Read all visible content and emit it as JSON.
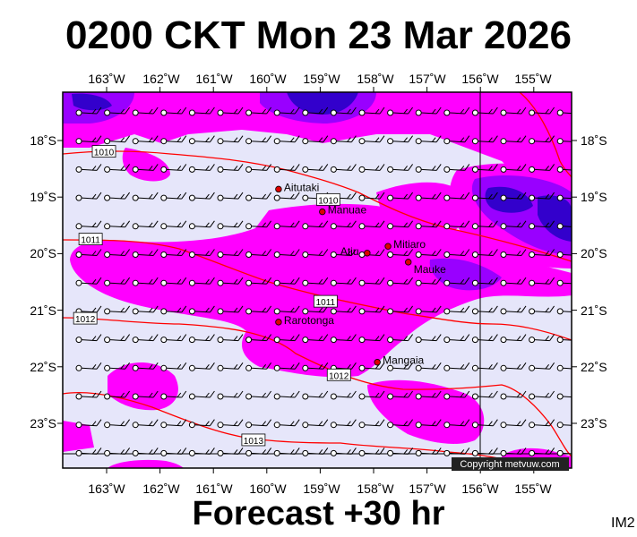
{
  "title": "0200 CKT Mon 23 Mar 2026",
  "forecast": "Forecast +30 hr",
  "tag": "IM2",
  "copyright": "Copyright metvuw.com",
  "lon_labels": [
    "163˚W",
    "162˚W",
    "161˚W",
    "160˚W",
    "159˚W",
    "158˚W",
    "157˚W",
    "156˚W",
    "155˚W"
  ],
  "lat_labels": [
    "18˚S",
    "19˚S",
    "20˚S",
    "21˚S",
    "22˚S",
    "23˚S"
  ],
  "places": [
    {
      "name": "Aitutaki",
      "lon": -159.78,
      "lat": -18.86
    },
    {
      "name": "Manuae",
      "lon": -158.96,
      "lat": -19.26
    },
    {
      "name": "Atiu",
      "lon": -158.12,
      "lat": -19.99
    },
    {
      "name": "Mitiaro",
      "lon": -157.73,
      "lat": -19.87
    },
    {
      "name": "Mauke",
      "lon": -157.35,
      "lat": -20.15
    },
    {
      "name": "Rarotonga",
      "lon": -159.78,
      "lat": -21.21
    },
    {
      "name": "Mangaia",
      "lon": -157.93,
      "lat": -21.92
    }
  ],
  "isobar_labels": [
    {
      "text": "1010",
      "lon": -163.05,
      "lat": -18.2
    },
    {
      "text": "1010",
      "lon": -158.85,
      "lat": -19.05
    },
    {
      "text": "1011",
      "lon": -163.3,
      "lat": -19.75
    },
    {
      "text": "1011",
      "lon": -158.9,
      "lat": -20.85
    },
    {
      "text": "1012",
      "lon": -163.4,
      "lat": -21.15
    },
    {
      "text": "1012",
      "lon": -158.65,
      "lat": -22.15
    },
    {
      "text": "1013",
      "lon": -160.25,
      "lat": -23.3
    }
  ],
  "colors": {
    "background": "#e6e6fa",
    "magenta": "#ff00ff",
    "purple": "#9900ff",
    "blue": "#3300cc",
    "isobar": "#ff0000"
  }
}
